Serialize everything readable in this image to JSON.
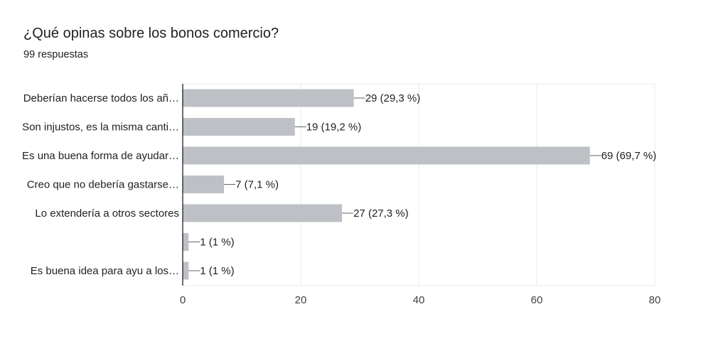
{
  "header": {
    "title": "¿Qué opinas sobre los bonos comercio?",
    "subtitle": "99 respuestas"
  },
  "colors": {
    "bar": "#bdc1c6",
    "grid": "#e8eaed",
    "axis": "#202124",
    "connector": "#5f6368"
  },
  "chart_data": {
    "type": "bar",
    "orientation": "horizontal",
    "title": "¿Qué opinas sobre los bonos comercio?",
    "subtitle": "99 respuestas",
    "categories": [
      "Deberían hacerse todos los añ…",
      "Son injustos, es la misma canti…",
      "Es una buena forma de ayudar…",
      "Creo que no debería gastarse…",
      "Lo extendería a otros sectores",
      "",
      "Es buena idea para ayu a los…"
    ],
    "values": [
      29,
      19,
      69,
      7,
      27,
      1,
      1
    ],
    "labels": [
      "29 (29,3 %)",
      "19 (19,2 %)",
      "69 (69,7 %)",
      "7 (7,1 %)",
      "27 (27,3 %)",
      "1 (1 %)",
      "1 (1 %)"
    ],
    "xlim": [
      0,
      80
    ],
    "xticks": [
      0,
      20,
      40,
      60,
      80
    ],
    "grid": true,
    "legend": "none"
  }
}
